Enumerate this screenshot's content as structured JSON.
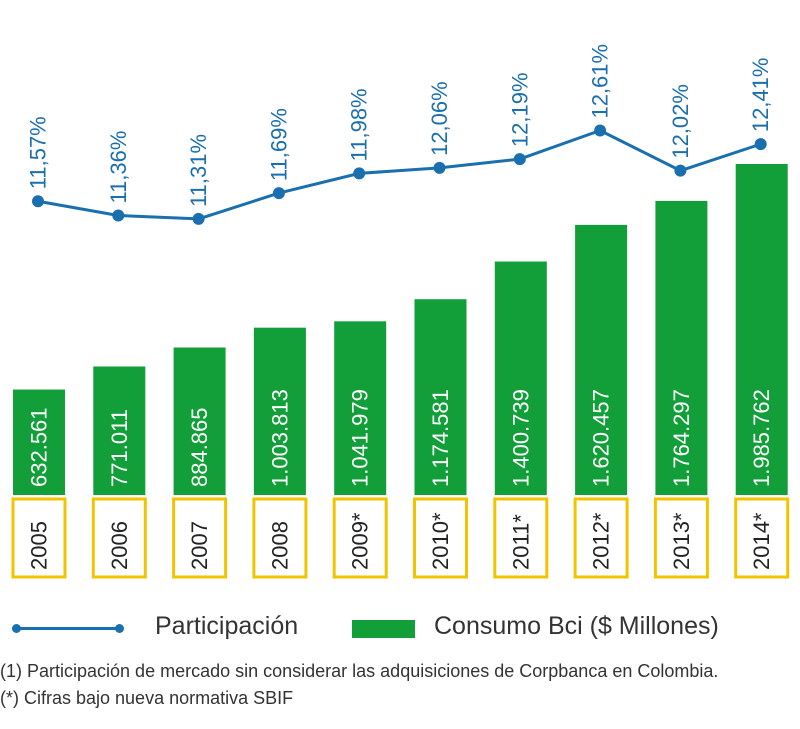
{
  "chart_data": {
    "type": "bar",
    "categories": [
      "2005",
      "2006",
      "2007",
      "2008",
      "2009*",
      "2010*",
      "2011*",
      "2012*",
      "2013*",
      "2014*"
    ],
    "series": [
      {
        "name": "Consumo Bci ($ Millones)",
        "type": "bar",
        "values": [
          632561,
          771011,
          884865,
          1003813,
          1041979,
          1174581,
          1400739,
          1620457,
          1764297,
          1985762
        ],
        "labels": [
          "632.561",
          "771.011",
          "884.865",
          "1.003.813",
          "1.041.979",
          "1.174.581",
          "1.400.739",
          "1.620.457",
          "1.764.297",
          "1.985.762"
        ],
        "color": "#129f3a"
      },
      {
        "name": "Participación",
        "type": "line",
        "values": [
          11.57,
          11.36,
          11.31,
          11.69,
          11.98,
          12.06,
          12.19,
          12.61,
          12.02,
          12.41
        ],
        "labels": [
          "11,57%",
          "11,36%",
          "11,31%",
          "11,69%",
          "11,98%",
          "12,06%",
          "12,19%",
          "12,61%",
          "12,02%",
          "12,41%"
        ],
        "color": "#1a6fae"
      }
    ],
    "category_box_color": "#f2c400",
    "legend_position": "bottom"
  },
  "legend": {
    "line_label": "Participación",
    "bar_label": "Consumo Bci ($ Millones)"
  },
  "footnotes": {
    "note1": "(1) Participación de mercado sin considerar las adquisiciones de Corpbanca en Colombia.",
    "note2": "(*) Cifras bajo nueva normativa SBIF"
  }
}
